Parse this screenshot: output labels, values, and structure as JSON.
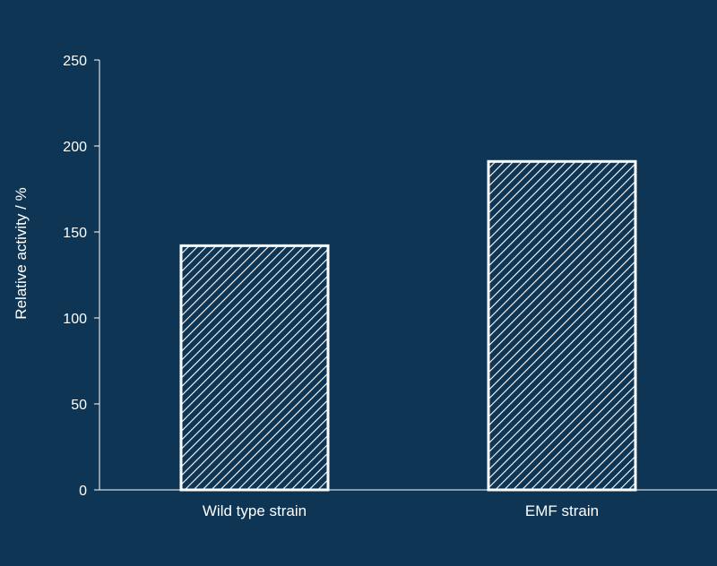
{
  "chart_data": {
    "type": "bar",
    "title": "",
    "xlabel": "",
    "ylabel": "Relative activity / %",
    "categories": [
      "Wild type strain",
      "EMF strain"
    ],
    "values": [
      142,
      191
    ],
    "ylim": [
      0,
      250
    ],
    "yticks": [
      0,
      50,
      100,
      150,
      200,
      250
    ],
    "grid": false,
    "legend": "none",
    "bar_fill": "hatched (diagonal white lines)",
    "colors": {
      "background": "#0f3554",
      "bar_outline": "#ffffff",
      "hatch": "#ffffff",
      "text": "#ffffff",
      "axis": "#ffffff"
    }
  }
}
